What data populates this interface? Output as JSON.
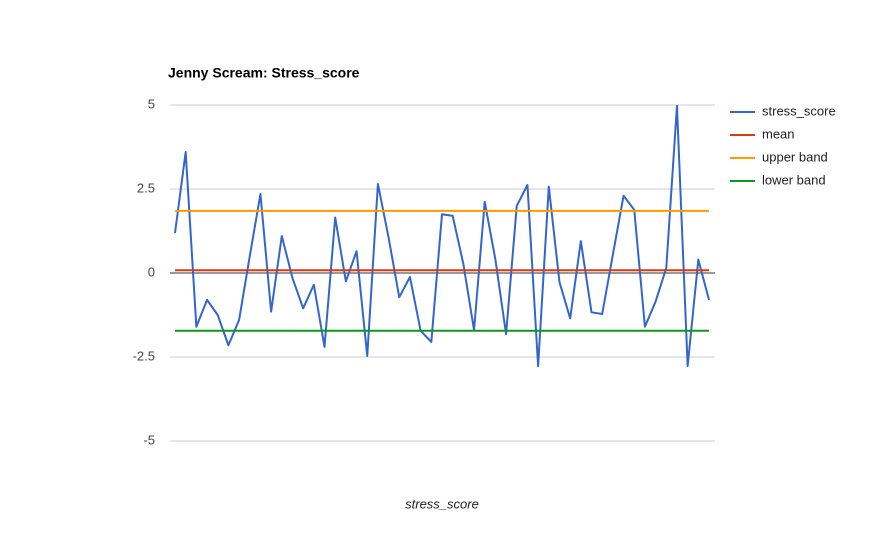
{
  "chart_data": {
    "type": "line",
    "title": "Jenny Scream: Stress_score",
    "x_label": "stress_score",
    "ylim": [
      -5,
      5
    ],
    "yticks": [
      -5,
      -2.5,
      0,
      2.5,
      5
    ],
    "grid": true,
    "legend": "right",
    "series": [
      {
        "name": "stress_score",
        "color": "#3366cc",
        "values": [
          1.19,
          3.6,
          -1.6,
          -0.8,
          -1.25,
          -2.15,
          -1.4,
          0.5,
          2.35,
          -1.15,
          1.1,
          -0.15,
          -1.05,
          -0.35,
          -2.2,
          1.65,
          -0.25,
          0.65,
          -2.47,
          2.65,
          1.05,
          -0.72,
          -0.12,
          -1.72,
          -2.05,
          1.75,
          1.7,
          0.27,
          -1.7,
          2.12,
          0.4,
          -1.82,
          2.0,
          2.62,
          -2.77,
          2.57,
          -0.27,
          -1.35,
          0.95,
          -1.17,
          -1.22,
          0.55,
          2.3,
          1.88,
          -1.6,
          -0.85,
          0.15,
          4.97,
          -2.77,
          0.4,
          -0.8
        ]
      },
      {
        "name": "mean",
        "color": "#dc3912",
        "values": [
          0.08,
          0.08,
          0.08,
          0.08,
          0.08,
          0.08,
          0.08,
          0.08,
          0.08,
          0.08,
          0.08,
          0.08,
          0.08,
          0.08,
          0.08,
          0.08,
          0.08,
          0.08,
          0.08,
          0.08,
          0.08,
          0.08,
          0.08,
          0.08,
          0.08,
          0.08,
          0.08,
          0.08,
          0.08,
          0.08,
          0.08,
          0.08,
          0.08,
          0.08,
          0.08,
          0.08,
          0.08,
          0.08,
          0.08,
          0.08,
          0.08,
          0.08,
          0.08,
          0.08,
          0.08,
          0.08,
          0.08,
          0.08,
          0.08,
          0.08,
          0.08
        ]
      },
      {
        "name": "upper band",
        "color": "#ff9900",
        "values": [
          1.85,
          1.85,
          1.85,
          1.85,
          1.85,
          1.85,
          1.85,
          1.85,
          1.85,
          1.85,
          1.85,
          1.85,
          1.85,
          1.85,
          1.85,
          1.85,
          1.85,
          1.85,
          1.85,
          1.85,
          1.85,
          1.85,
          1.85,
          1.85,
          1.85,
          1.85,
          1.85,
          1.85,
          1.85,
          1.85,
          1.85,
          1.85,
          1.85,
          1.85,
          1.85,
          1.85,
          1.85,
          1.85,
          1.85,
          1.85,
          1.85,
          1.85,
          1.85,
          1.85,
          1.85,
          1.85,
          1.85,
          1.85,
          1.85,
          1.85,
          1.85
        ]
      },
      {
        "name": "lower band",
        "color": "#109618",
        "values": [
          -1.72,
          -1.72,
          -1.72,
          -1.72,
          -1.72,
          -1.72,
          -1.72,
          -1.72,
          -1.72,
          -1.72,
          -1.72,
          -1.72,
          -1.72,
          -1.72,
          -1.72,
          -1.72,
          -1.72,
          -1.72,
          -1.72,
          -1.72,
          -1.72,
          -1.72,
          -1.72,
          -1.72,
          -1.72,
          -1.72,
          -1.72,
          -1.72,
          -1.72,
          -1.72,
          -1.72,
          -1.72,
          -1.72,
          -1.72,
          -1.72,
          -1.72,
          -1.72,
          -1.72,
          -1.72,
          -1.72,
          -1.72,
          -1.72,
          -1.72,
          -1.72,
          -1.72,
          -1.72,
          -1.72,
          -1.72,
          -1.72,
          -1.72,
          -1.72
        ]
      }
    ]
  }
}
